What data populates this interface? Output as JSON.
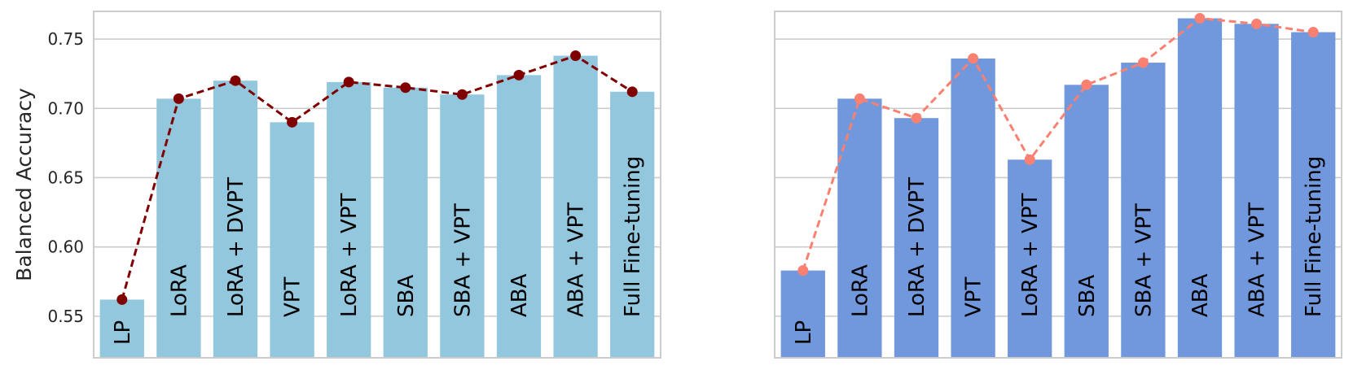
{
  "chart_data": [
    {
      "type": "bar",
      "ylabel": "Balanced Accuracy",
      "ylim": [
        0.52,
        0.77
      ],
      "yticks": [
        "0.55",
        "0.60",
        "0.65",
        "0.70",
        "0.75"
      ],
      "grid": "horizontal",
      "categories": [
        "LP",
        "LoRA",
        "LoRA + DVPT",
        "VPT",
        "LoRA + VPT",
        "SBA",
        "SBA + VPT",
        "ABA",
        "ABA + VPT",
        "Full Fine-tuning"
      ],
      "series": [
        {
          "kind": "bar",
          "values": [
            0.562,
            0.707,
            0.72,
            0.69,
            0.719,
            0.715,
            0.71,
            0.724,
            0.738,
            0.712
          ]
        },
        {
          "kind": "line-dashed-markers",
          "values": [
            0.562,
            0.707,
            0.72,
            0.69,
            0.719,
            0.715,
            0.71,
            0.724,
            0.738,
            0.712
          ]
        }
      ],
      "colors": {
        "bar": "#92c7de",
        "line": "#800000"
      }
    },
    {
      "type": "bar",
      "ylabel": "",
      "ylim": [
        0.52,
        0.77
      ],
      "yticks": [],
      "grid": "horizontal",
      "categories": [
        "LP",
        "LoRA",
        "LoRA + DVPT",
        "VPT",
        "LoRA + VPT",
        "SBA",
        "SBA + VPT",
        "ABA",
        "ABA + VPT",
        "Full Fine-tuning"
      ],
      "series": [
        {
          "kind": "bar",
          "values": [
            0.583,
            0.707,
            0.693,
            0.736,
            0.663,
            0.717,
            0.733,
            0.765,
            0.761,
            0.755
          ]
        },
        {
          "kind": "line-dashed-markers",
          "values": [
            0.583,
            0.707,
            0.693,
            0.736,
            0.663,
            0.717,
            0.733,
            0.765,
            0.761,
            0.755
          ]
        }
      ],
      "colors": {
        "bar": "#7198dc",
        "line": "#fa8072"
      }
    }
  ]
}
